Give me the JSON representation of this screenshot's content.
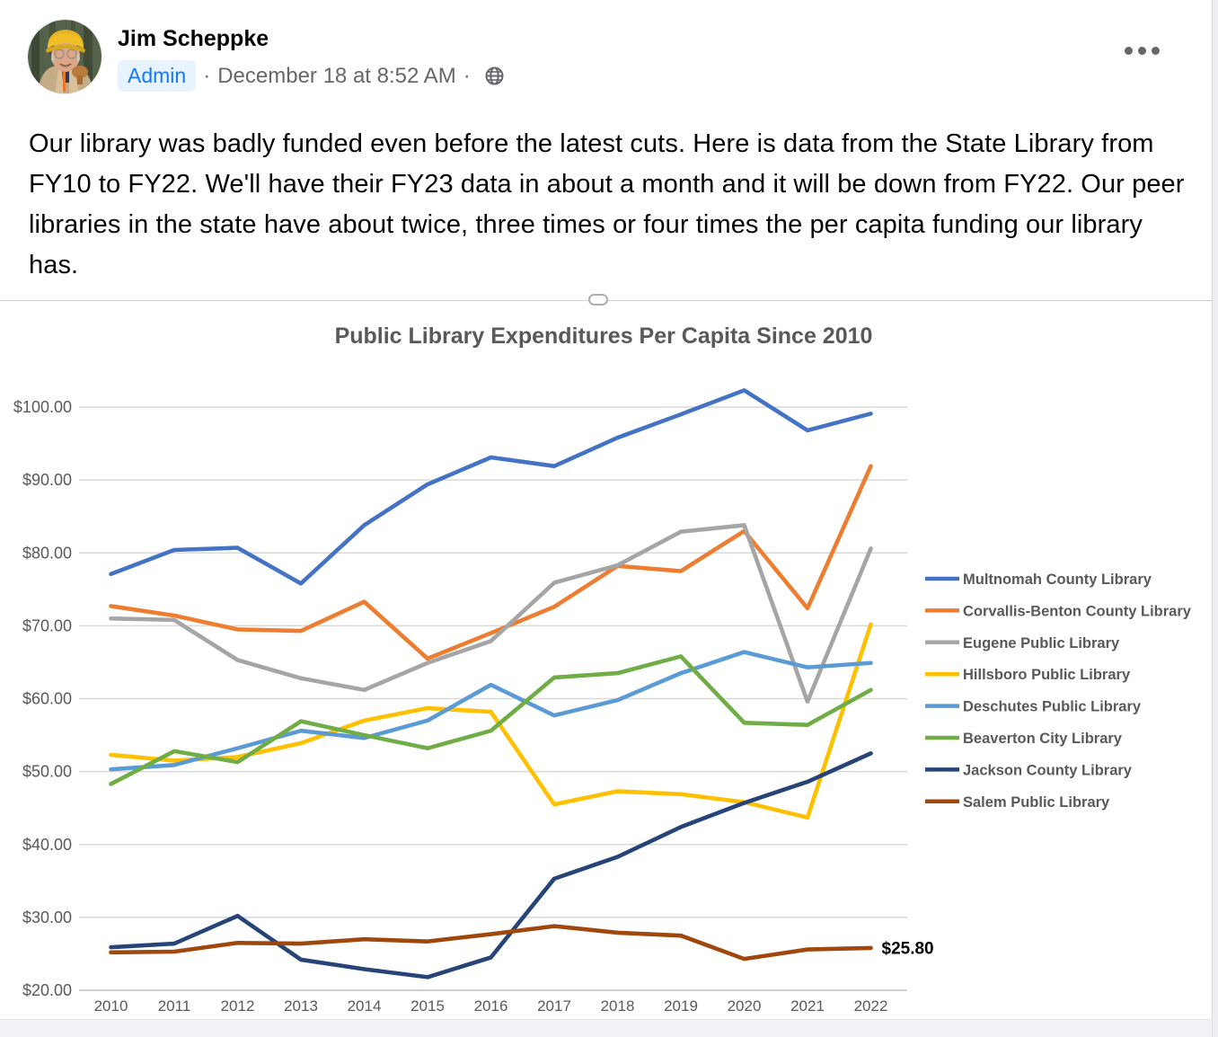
{
  "post": {
    "author": "Jim Scheppke",
    "badge": "Admin",
    "meta_separator": "·",
    "timestamp": "December 18 at 8:52 AM",
    "body_text": "Our library was badly funded even before the latest cuts. Here is data from the State Library from FY10 to FY22. We'll have their FY23 data in about a month and it will be down from FY22. Our peer libraries in the state have about twice, three times or four times the per capita funding our library has.",
    "colors": {
      "badge_bg": "#E7F3FF",
      "badge_text": "#1877F2",
      "muted_text": "#65676B",
      "body": "#050505"
    }
  },
  "chart_data": {
    "type": "line",
    "title": "Public Library Expenditures Per Capita Since 2010",
    "x_labels": [
      "2010",
      "2011",
      "2012",
      "2013",
      "2014",
      "2015",
      "2016",
      "2017",
      "2018",
      "2019",
      "2020",
      "2021",
      "2022"
    ],
    "y_ticks": [
      {
        "value": 100,
        "label": "$100.00"
      },
      {
        "value": 90,
        "label": "$90.00"
      },
      {
        "value": 80,
        "label": "$80.00"
      },
      {
        "value": 70,
        "label": "$70.00"
      },
      {
        "value": 60,
        "label": "$60.00"
      },
      {
        "value": 50,
        "label": "$50.00"
      },
      {
        "value": 40,
        "label": "$40.00"
      },
      {
        "value": 30,
        "label": "$30.00"
      },
      {
        "value": 20,
        "label": "$20.00"
      }
    ],
    "ylim": [
      20,
      103
    ],
    "grid": true,
    "legend_position": "right",
    "series": [
      {
        "name": "Multnomah County Library",
        "color": "#4472C4",
        "values": [
          77.1,
          80.4,
          80.7,
          75.8,
          83.8,
          89.4,
          93.1,
          91.9,
          95.8,
          99.0,
          102.3,
          96.8,
          99.1
        ]
      },
      {
        "name": "Corvallis-Benton County Library",
        "color": "#ED7D31",
        "values": [
          72.7,
          71.4,
          69.5,
          69.3,
          73.3,
          65.5,
          69.0,
          72.6,
          78.2,
          77.5,
          83.0,
          72.4,
          91.9
        ]
      },
      {
        "name": "Eugene Public Library",
        "color": "#A5A5A5",
        "values": [
          71.0,
          70.8,
          65.3,
          62.8,
          61.2,
          64.9,
          67.9,
          75.9,
          78.3,
          82.9,
          83.8,
          59.6,
          80.6
        ]
      },
      {
        "name": "Hillsboro Public Library",
        "color": "#FFC000",
        "values": [
          52.3,
          51.5,
          52.0,
          53.9,
          57.0,
          58.7,
          58.2,
          45.5,
          47.3,
          46.9,
          45.8,
          43.7,
          70.2
        ]
      },
      {
        "name": "Deschutes Public Library",
        "color": "#5B9BD5",
        "values": [
          50.3,
          50.9,
          53.2,
          55.6,
          54.6,
          57.0,
          61.9,
          57.7,
          59.8,
          63.5,
          66.4,
          64.3,
          64.9
        ]
      },
      {
        "name": "Beaverton City Library",
        "color": "#70AD47",
        "values": [
          48.3,
          52.8,
          51.3,
          56.9,
          55.0,
          53.2,
          55.6,
          62.9,
          63.5,
          65.8,
          56.7,
          56.4,
          61.2
        ]
      },
      {
        "name": "Jackson County Library",
        "color": "#264478",
        "values": [
          25.9,
          26.4,
          30.2,
          24.2,
          22.9,
          21.8,
          24.5,
          35.3,
          38.3,
          42.4,
          45.7,
          48.6,
          52.5
        ]
      },
      {
        "name": "Salem Public Library",
        "color": "#9E480E",
        "values": [
          25.2,
          25.3,
          26.5,
          26.4,
          27.0,
          26.7,
          27.7,
          28.8,
          27.9,
          27.5,
          24.3,
          25.6,
          25.8
        ]
      }
    ],
    "annotation": {
      "text": "$25.80",
      "series": "Salem Public Library",
      "x_label": "2022"
    },
    "text_color": "#595959",
    "grid_color": "#D9D9D9",
    "axis_color": "#BFBFBF"
  }
}
